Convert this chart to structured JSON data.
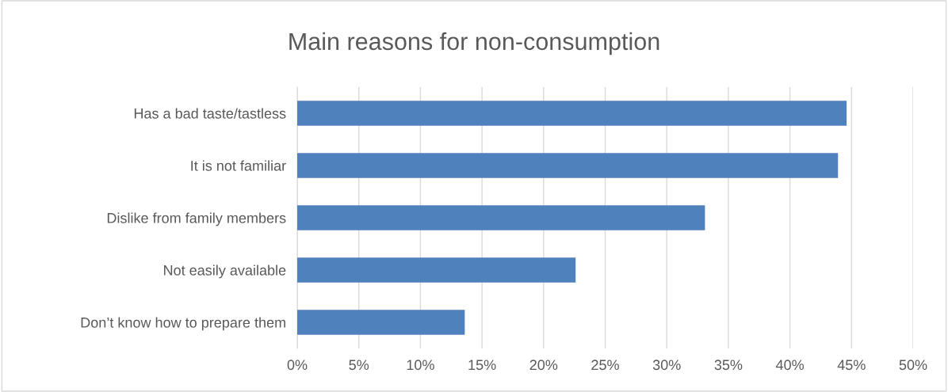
{
  "chart_data": {
    "type": "bar",
    "orientation": "horizontal",
    "title": "Main reasons for non-consumption",
    "categories": [
      "Has a bad taste/tastless",
      "It is not familiar",
      "Dislike from family members",
      "Not easily available",
      "Don’t know how to prepare them"
    ],
    "values": [
      44.6,
      43.9,
      33.1,
      22.6,
      13.6
    ],
    "color": "#4f81bd",
    "xlim": [
      0,
      50
    ],
    "xticks": [
      {
        "value": 0,
        "label": "0%"
      },
      {
        "value": 5,
        "label": "5%"
      },
      {
        "value": 10,
        "label": "10%"
      },
      {
        "value": 15,
        "label": "15%"
      },
      {
        "value": 20,
        "label": "20%"
      },
      {
        "value": 25,
        "label": "25%"
      },
      {
        "value": 30,
        "label": "30%"
      },
      {
        "value": 35,
        "label": "35%"
      },
      {
        "value": 40,
        "label": "40%"
      },
      {
        "value": 45,
        "label": "45%"
      },
      {
        "value": 50,
        "label": "50%"
      }
    ],
    "grid": "x",
    "legend": false
  }
}
